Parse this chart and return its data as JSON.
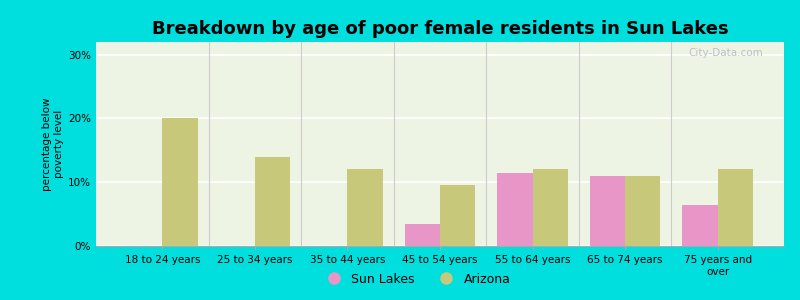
{
  "title": "Breakdown by age of poor female residents in Sun Lakes",
  "ylabel": "percentage below\npoverty level",
  "categories": [
    "18 to 24 years",
    "25 to 34 years",
    "35 to 44 years",
    "45 to 54 years",
    "55 to 64 years",
    "65 to 74 years",
    "75 years and\nover"
  ],
  "sun_lakes": [
    0,
    0,
    0,
    3.5,
    11.5,
    11.0,
    6.5
  ],
  "arizona": [
    20.0,
    14.0,
    12.0,
    9.5,
    12.0,
    11.0,
    12.0
  ],
  "sun_lakes_color": "#e896c8",
  "arizona_color": "#c8c87a",
  "ylim": [
    0,
    32
  ],
  "yticks": [
    0,
    10,
    20,
    30
  ],
  "ytick_labels": [
    "0%",
    "10%",
    "20%",
    "30%"
  ],
  "bar_width": 0.38,
  "background_outer": "#00dede",
  "background_inner": "#eef4e4",
  "grid_color": "#ffffff",
  "legend_sun_lakes": "Sun Lakes",
  "legend_arizona": "Arizona",
  "title_fontsize": 13,
  "axis_label_fontsize": 7.5,
  "tick_fontsize": 7.5,
  "watermark": "City-Data.com"
}
